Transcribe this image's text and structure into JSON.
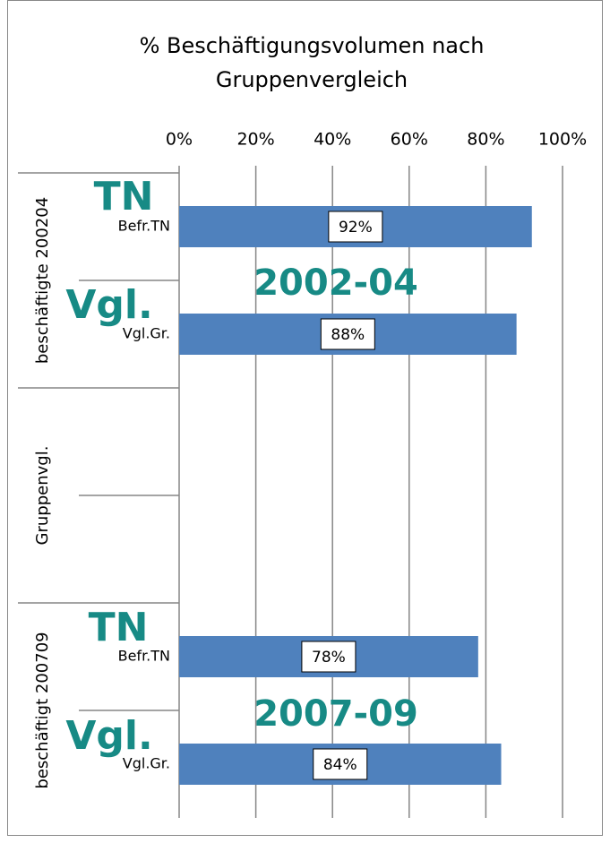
{
  "chart_data": {
    "type": "bar",
    "orientation": "horizontal",
    "title": "% Beschäftigungsvolumen nach Gruppenvergleich",
    "groups": [
      "beschäftigte 200204",
      "Gruppenvgl.",
      "beschäftigt 200709"
    ],
    "categories": [
      "Befr.TN",
      "Vgl.Gr.",
      null,
      null,
      "Befr.TN",
      "Vgl.Gr."
    ],
    "values": [
      92,
      88,
      null,
      null,
      78,
      84
    ],
    "value_labels": [
      "92%",
      "88%",
      null,
      null,
      "78%",
      "84%"
    ],
    "color": "#4f81bd",
    "xlim": [
      0,
      100
    ],
    "xticks": [
      {
        "value": 0,
        "label": "0%"
      },
      {
        "value": 20,
        "label": "20%"
      },
      {
        "value": 40,
        "label": "40%"
      },
      {
        "value": 60,
        "label": "60%"
      },
      {
        "value": 80,
        "label": "80%"
      },
      {
        "value": 100,
        "label": "100%"
      }
    ],
    "grid": true,
    "annotations": [
      "TN",
      "Vgl.",
      "2002-04",
      "TN",
      "Vgl.",
      "2007-09"
    ],
    "annotation_color": "#178a85"
  }
}
